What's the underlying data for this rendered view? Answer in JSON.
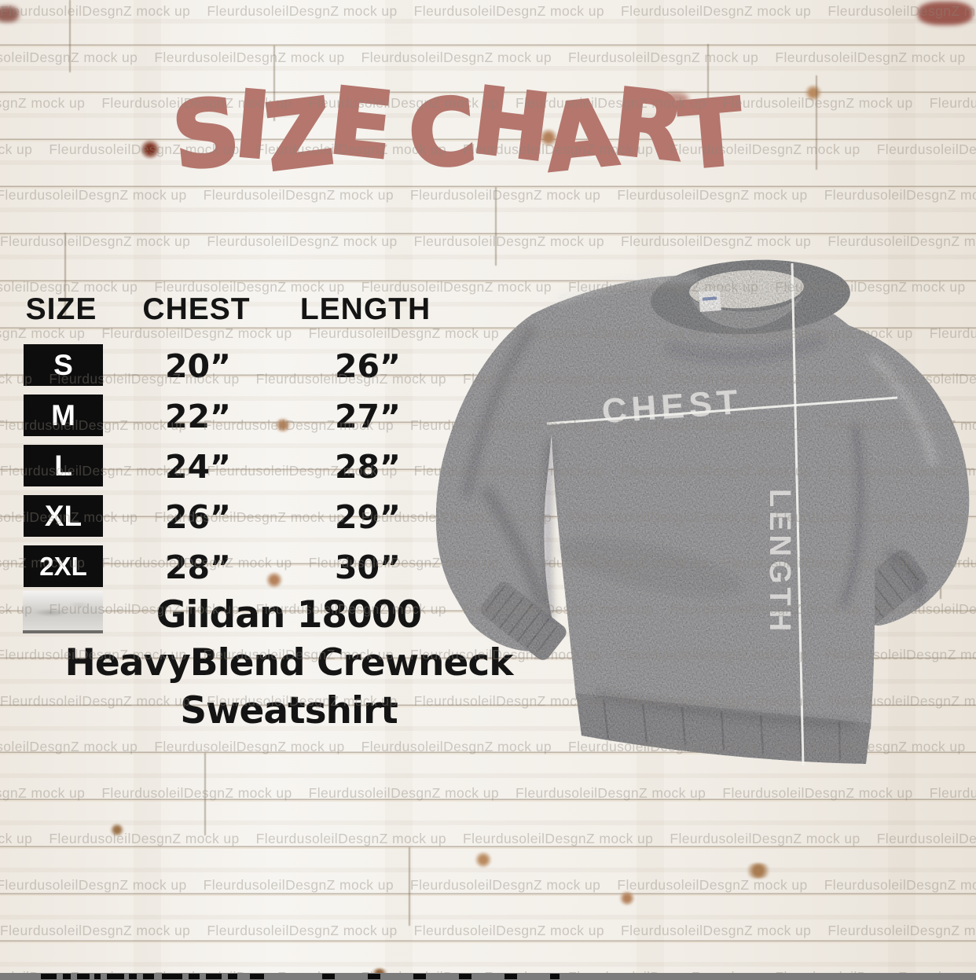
{
  "title": "SIZE CHART",
  "watermark": {
    "text": "FleurdusoleilDesgnZ mock up"
  },
  "table": {
    "headers": [
      "SIZE",
      "CHEST",
      "LENGTH"
    ],
    "rows": [
      {
        "size": "S",
        "chest": "20”",
        "length": "26”"
      },
      {
        "size": "M",
        "chest": "22”",
        "length": "27”"
      },
      {
        "size": "L",
        "chest": "24”",
        "length": "28”"
      },
      {
        "size": "XL",
        "chest": "26”",
        "length": "29”"
      },
      {
        "size": "2XL",
        "chest": "28”",
        "length": "30”"
      }
    ]
  },
  "product": {
    "line1": "Gildan 18000",
    "line2": "HeavyBlend Crewneck",
    "line3": "Sweatshirt"
  },
  "garment": {
    "chest_label": "CHEST",
    "length_label": "LENGTH"
  },
  "chart_data": {
    "type": "table",
    "title": "SIZE CHART",
    "columns": [
      "SIZE",
      "CHEST",
      "LENGTH"
    ],
    "rows": [
      [
        "S",
        "20\"",
        "26\""
      ],
      [
        "M",
        "22\"",
        "27\""
      ],
      [
        "L",
        "24\"",
        "28\""
      ],
      [
        "XL",
        "26\"",
        "29\""
      ],
      [
        "2XL",
        "28\"",
        "30\""
      ]
    ],
    "units": "inches",
    "product": "Gildan 18000 HeavyBlend Crewneck Sweatshirt"
  },
  "colors": {
    "title_color": "#b4766d",
    "text_color": "#141414",
    "size_box_bg": "#0d0d0d",
    "size_box_text": "#ffffff",
    "sweatshirt": "#a8a8aa",
    "sweatshirt_trim": "#97979a",
    "measure_line": "#f4f3ef",
    "watermark_color": "#8d867c",
    "wood_line": "#9b8a74"
  }
}
